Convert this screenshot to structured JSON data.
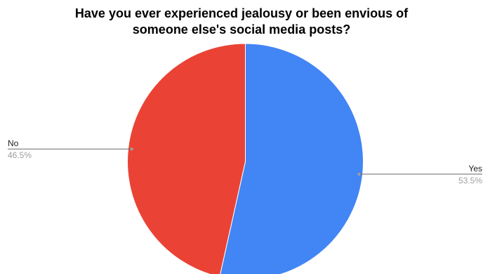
{
  "chart_data": {
    "type": "pie",
    "title_lines": [
      "Have you ever experienced jealousy or been envious of",
      "someone else's social media posts?"
    ],
    "slices": [
      {
        "label": "Yes",
        "value": 53.5,
        "display": "53.5%",
        "color": "#4285f4"
      },
      {
        "label": "No",
        "value": 46.5,
        "display": "46.5%",
        "color": "#ea4335"
      }
    ],
    "start_angle": "top (12 o'clock), clockwise",
    "legend": "none (leader-line labels)"
  }
}
